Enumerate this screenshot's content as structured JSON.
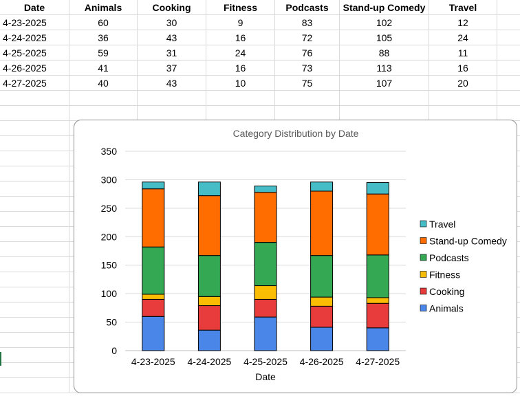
{
  "sheet": {
    "columns": [
      "Date",
      "Animals",
      "Cooking",
      "Fitness",
      "Podcasts",
      "Stand-up Comedy",
      "Travel"
    ],
    "rows": [
      [
        "4-23-2025",
        "60",
        "30",
        "9",
        "83",
        "102",
        "12"
      ],
      [
        "4-24-2025",
        "36",
        "43",
        "16",
        "72",
        "105",
        "24"
      ],
      [
        "4-25-2025",
        "59",
        "31",
        "24",
        "76",
        "88",
        "11"
      ],
      [
        "4-26-2025",
        "41",
        "37",
        "16",
        "73",
        "113",
        "16"
      ],
      [
        "4-27-2025",
        "40",
        "43",
        "10",
        "75",
        "107",
        "20"
      ]
    ]
  },
  "chart_data": {
    "type": "bar",
    "stacked": true,
    "title": "Category Distribution by Date",
    "xlabel": "Date",
    "ylabel": "",
    "ylim": [
      0,
      350
    ],
    "yticks": [
      0,
      50,
      100,
      150,
      200,
      250,
      300,
      350
    ],
    "categories": [
      "4-23-2025",
      "4-24-2025",
      "4-25-2025",
      "4-26-2025",
      "4-27-2025"
    ],
    "series": [
      {
        "name": "Animals",
        "color": "#4a86e8",
        "values": [
          60,
          36,
          59,
          41,
          40
        ]
      },
      {
        "name": "Cooking",
        "color": "#e83c3c",
        "values": [
          30,
          43,
          31,
          37,
          43
        ]
      },
      {
        "name": "Fitness",
        "color": "#fbbc04",
        "values": [
          9,
          16,
          24,
          16,
          10
        ]
      },
      {
        "name": "Podcasts",
        "color": "#34a853",
        "values": [
          83,
          72,
          76,
          73,
          75
        ]
      },
      {
        "name": "Stand-up Comedy",
        "color": "#ff6d01",
        "values": [
          102,
          105,
          88,
          113,
          107
        ]
      },
      {
        "name": "Travel",
        "color": "#46bdc6",
        "values": [
          12,
          24,
          11,
          16,
          20
        ]
      }
    ],
    "grid": true,
    "legend_position": "right"
  }
}
